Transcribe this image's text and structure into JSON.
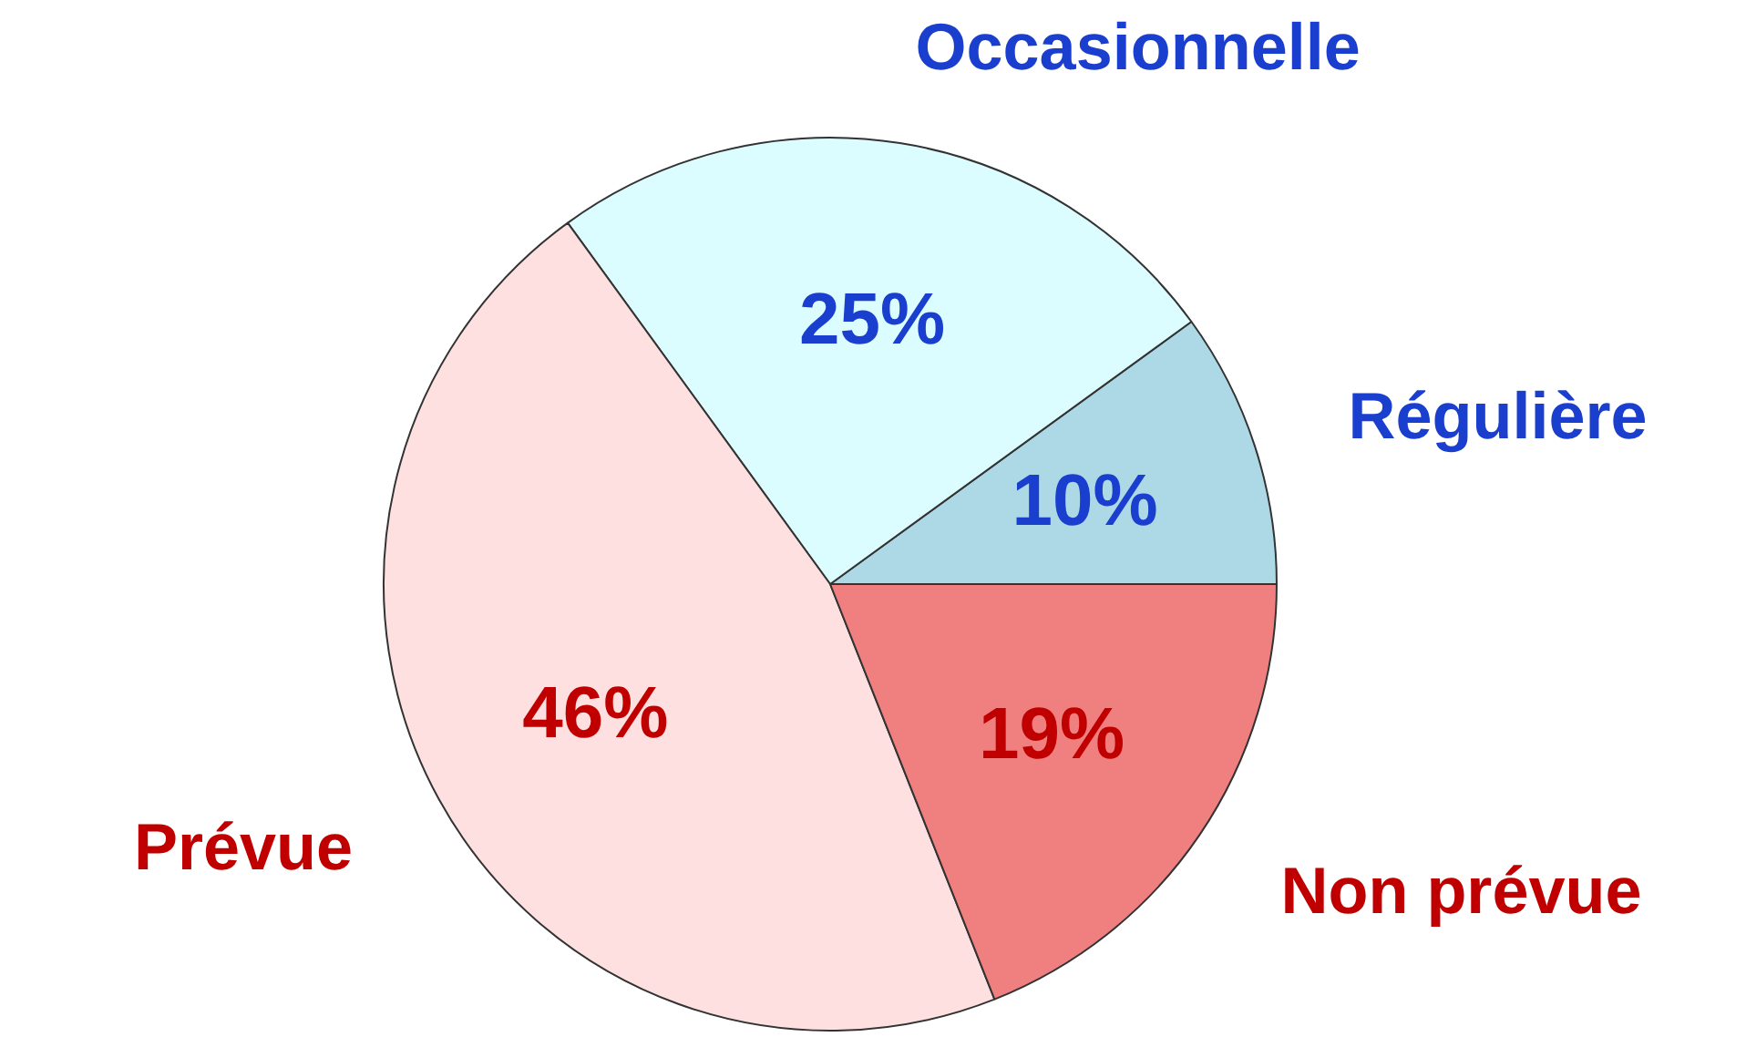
{
  "chart_data": {
    "type": "pie",
    "categories": [
      "Régulière",
      "Occasionnelle",
      "Prévue",
      "Non prévue"
    ],
    "values": [
      10,
      25,
      46,
      19
    ],
    "colors": [
      "#add8e6",
      "#dcfdff",
      "#fde0df",
      "#f08080"
    ],
    "value_labels": [
      "10%",
      "25%",
      "46%",
      "19%"
    ]
  }
}
